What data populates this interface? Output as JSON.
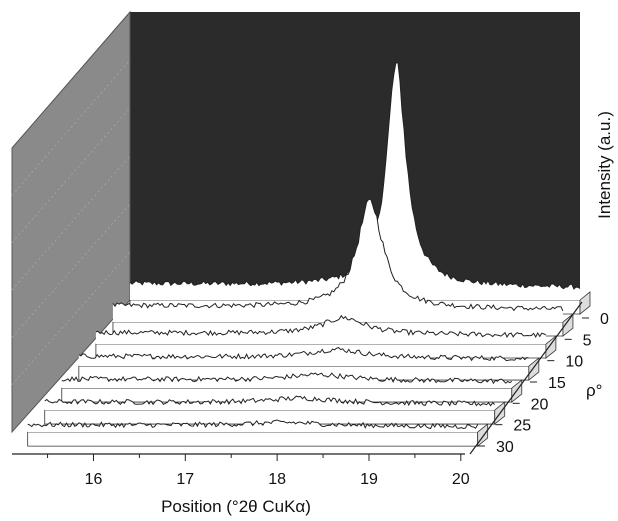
{
  "chart_data": {
    "type": "line",
    "style": "3d-waterfall",
    "xlabel": "Position (°2θ CuKα)",
    "ylabel": "Intensity (a.u.)",
    "zlabel": "ρ°",
    "x_ticks": [
      "16",
      "17",
      "18",
      "19",
      "20"
    ],
    "xlim": [
      15.2,
      20.1
    ],
    "z_ticks": [
      "0",
      "5",
      "10",
      "15",
      "20",
      "25",
      "30"
    ],
    "series": [
      {
        "rho": 0,
        "peak_center": 18.1,
        "peak_height": 270,
        "baseline": 20,
        "width": 0.13
      },
      {
        "rho": 5,
        "peak_center": 18.0,
        "peak_height": 130,
        "baseline": 20,
        "width": 0.17
      },
      {
        "rho": 10,
        "peak_center": 17.9,
        "peak_height": 20,
        "baseline": 14,
        "width": 0.28
      },
      {
        "rho": 15,
        "peak_center": 18.0,
        "peak_height": 10,
        "baseline": 12,
        "width": 0.35
      },
      {
        "rho": 20,
        "peak_center": 18.0,
        "peak_height": 7,
        "baseline": 11,
        "width": 0.4
      },
      {
        "rho": 25,
        "peak_center": 18.0,
        "peak_height": 6,
        "baseline": 10,
        "width": 0.45
      },
      {
        "rho": 30,
        "peak_center": 18.0,
        "peak_height": 4,
        "baseline": 9,
        "width": 0.5
      }
    ],
    "grid": false,
    "colors": {
      "back_wall": "#2b2b2b",
      "side_wall": "#8a8a8a",
      "trace_fill": "#ffffff",
      "trace_line": "#222222"
    }
  }
}
